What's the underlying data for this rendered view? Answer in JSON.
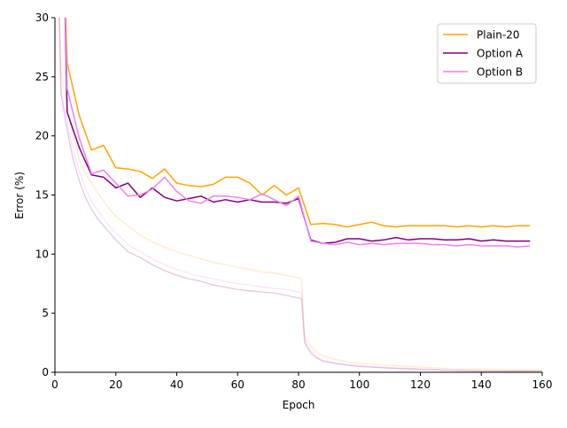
{
  "chart_data": {
    "type": "line",
    "title": "",
    "xlabel": "Epoch",
    "ylabel": "Error (%)",
    "xlim": [
      0,
      160
    ],
    "ylim": [
      0,
      30
    ],
    "xticks": [
      0,
      20,
      40,
      60,
      80,
      100,
      120,
      140,
      160
    ],
    "yticks": [
      0,
      5,
      10,
      15,
      20,
      25,
      30
    ],
    "grid": false,
    "legend_position": "top-right",
    "series": [
      {
        "name": "Plain-20",
        "color": "#ffa500",
        "role": "test",
        "x": [
          4,
          8,
          12,
          16,
          20,
          24,
          28,
          32,
          36,
          40,
          44,
          48,
          52,
          56,
          60,
          64,
          68,
          72,
          76,
          80,
          84,
          88,
          92,
          96,
          100,
          104,
          108,
          112,
          116,
          120,
          124,
          128,
          132,
          136,
          140,
          144,
          148,
          152,
          156
        ],
        "y": [
          26.2,
          21.7,
          18.8,
          19.2,
          17.3,
          17.2,
          17.0,
          16.4,
          17.2,
          16.0,
          15.8,
          15.7,
          15.9,
          16.5,
          16.5,
          16.0,
          15.0,
          15.8,
          15.0,
          15.6,
          12.5,
          12.6,
          12.5,
          12.3,
          12.5,
          12.7,
          12.4,
          12.3,
          12.4,
          12.4,
          12.4,
          12.4,
          12.3,
          12.4,
          12.3,
          12.4,
          12.3,
          12.4,
          12.4
        ]
      },
      {
        "name": "Option A",
        "color": "#800080",
        "role": "test",
        "x": [
          4,
          8,
          12,
          16,
          20,
          24,
          28,
          32,
          36,
          40,
          44,
          48,
          52,
          56,
          60,
          64,
          68,
          72,
          76,
          80,
          84,
          88,
          92,
          96,
          100,
          104,
          108,
          112,
          116,
          120,
          124,
          128,
          132,
          136,
          140,
          144,
          148,
          152,
          156
        ],
        "y": [
          22.0,
          19.0,
          16.7,
          16.5,
          15.6,
          16.0,
          14.8,
          15.6,
          14.8,
          14.5,
          14.7,
          14.9,
          14.4,
          14.6,
          14.4,
          14.6,
          14.4,
          14.4,
          14.3,
          14.7,
          11.2,
          10.9,
          11.0,
          11.3,
          11.3,
          11.1,
          11.2,
          11.4,
          11.2,
          11.3,
          11.3,
          11.2,
          11.2,
          11.3,
          11.1,
          11.2,
          11.1,
          11.1,
          11.1
        ]
      },
      {
        "name": "Option B",
        "color": "#ee82ee",
        "role": "test",
        "x": [
          4,
          8,
          12,
          16,
          20,
          24,
          28,
          32,
          36,
          40,
          44,
          48,
          52,
          56,
          60,
          64,
          68,
          72,
          76,
          80,
          84,
          88,
          92,
          96,
          100,
          104,
          108,
          112,
          116,
          120,
          124,
          128,
          132,
          136,
          140,
          144,
          148,
          152,
          156
        ],
        "y": [
          24.0,
          19.8,
          16.8,
          17.1,
          16.0,
          14.9,
          15.0,
          15.5,
          16.5,
          15.3,
          14.5,
          14.3,
          14.9,
          14.9,
          14.8,
          14.6,
          15.1,
          14.6,
          14.1,
          14.9,
          11.1,
          10.9,
          10.8,
          11.0,
          10.8,
          10.9,
          10.8,
          10.9,
          10.9,
          10.9,
          10.8,
          10.8,
          10.7,
          10.8,
          10.7,
          10.7,
          10.7,
          10.6,
          10.7
        ]
      },
      {
        "name": "",
        "color": "#ffa500",
        "role": "train",
        "x": [
          2,
          4,
          6,
          8,
          10,
          12,
          14,
          16,
          18,
          20,
          24,
          28,
          32,
          36,
          40,
          44,
          48,
          52,
          56,
          60,
          64,
          68,
          72,
          76,
          80,
          81,
          82,
          84,
          86,
          88,
          92,
          96,
          100,
          110,
          120,
          130,
          140,
          150,
          160
        ],
        "y": [
          25.5,
          22.5,
          20.0,
          18.0,
          16.8,
          16.0,
          15.2,
          14.5,
          13.8,
          13.2,
          12.4,
          11.6,
          11.0,
          10.6,
          10.2,
          9.9,
          9.6,
          9.3,
          9.1,
          8.9,
          8.7,
          8.5,
          8.4,
          8.2,
          8.0,
          7.9,
          3.0,
          2.2,
          1.7,
          1.4,
          1.1,
          0.9,
          0.75,
          0.6,
          0.45,
          0.3,
          0.25,
          0.2,
          0.2
        ]
      },
      {
        "name": "",
        "color": "#800080",
        "role": "train",
        "x": [
          2,
          4,
          6,
          8,
          10,
          12,
          14,
          16,
          18,
          20,
          24,
          28,
          32,
          36,
          40,
          44,
          48,
          52,
          56,
          60,
          64,
          68,
          72,
          76,
          80,
          81,
          82,
          84,
          86,
          88,
          92,
          96,
          100,
          110,
          120,
          130,
          140,
          150,
          160
        ],
        "y": [
          23.5,
          20.5,
          18.0,
          16.2,
          14.8,
          13.8,
          13.0,
          12.4,
          11.8,
          11.2,
          10.2,
          9.7,
          9.1,
          8.6,
          8.2,
          7.9,
          7.7,
          7.4,
          7.2,
          7.0,
          6.9,
          6.8,
          6.7,
          6.5,
          6.3,
          6.2,
          2.5,
          1.6,
          1.2,
          0.95,
          0.75,
          0.6,
          0.5,
          0.35,
          0.25,
          0.15,
          0.1,
          0.1,
          0.1
        ]
      },
      {
        "name": "",
        "color": "#ee82ee",
        "role": "train",
        "x": [
          2,
          4,
          6,
          8,
          10,
          12,
          14,
          16,
          18,
          20,
          24,
          28,
          32,
          36,
          40,
          44,
          48,
          52,
          56,
          60,
          64,
          68,
          72,
          76,
          80,
          81,
          82,
          84,
          86,
          88,
          92,
          96,
          100,
          110,
          120,
          130,
          140,
          150,
          160
        ],
        "y": [
          24.0,
          21.0,
          18.8,
          17.0,
          15.6,
          14.5,
          13.7,
          13.0,
          12.3,
          11.8,
          10.8,
          10.2,
          9.6,
          9.1,
          8.7,
          8.4,
          8.1,
          7.9,
          7.7,
          7.5,
          7.4,
          7.2,
          7.1,
          7.0,
          6.8,
          6.7,
          2.7,
          1.8,
          1.3,
          1.0,
          0.8,
          0.65,
          0.55,
          0.4,
          0.3,
          0.2,
          0.15,
          0.12,
          0.12
        ]
      }
    ]
  }
}
